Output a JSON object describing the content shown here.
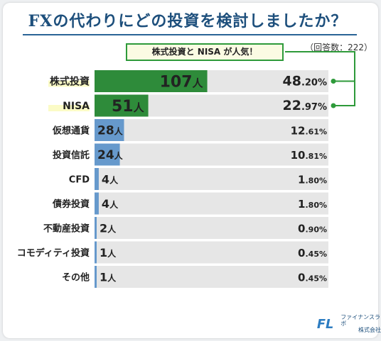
{
  "title": "FXの代わりにどの投資を検討しましたか？",
  "respondents": "（回答数：222）",
  "callout": "株式投資と NISA が人気！",
  "count_suffix": "人",
  "logo": {
    "name": "ファイナンスラボ",
    "sub": "株式会社",
    "mark": "FL"
  },
  "colors": {
    "highlight": "#2e8b3a",
    "normal": "#6699cc",
    "track": "#e6e6e6",
    "marker": "#fbfbc6",
    "accent": "#2e9a3a"
  },
  "chart_data": {
    "type": "bar",
    "orientation": "horizontal",
    "categories": [
      "株式投資",
      "NISA",
      "仮想通貨",
      "投資信託",
      "CFD",
      "債券投資",
      "不動産投資",
      "コモディティ投資",
      "その他"
    ],
    "values": [
      107,
      51,
      28,
      24,
      4,
      4,
      2,
      1,
      1
    ],
    "percent_int": [
      "48",
      "22",
      "12",
      "10",
      "1",
      "1",
      "0",
      "0",
      "0"
    ],
    "percent_dec": [
      ".20%",
      ".97%",
      ".61%",
      ".81%",
      ".80%",
      ".80%",
      ".90%",
      ".45%",
      ".45%"
    ],
    "highlight": [
      true,
      true,
      false,
      false,
      false,
      false,
      false,
      false,
      false
    ],
    "xlim": [
      0,
      222
    ]
  }
}
